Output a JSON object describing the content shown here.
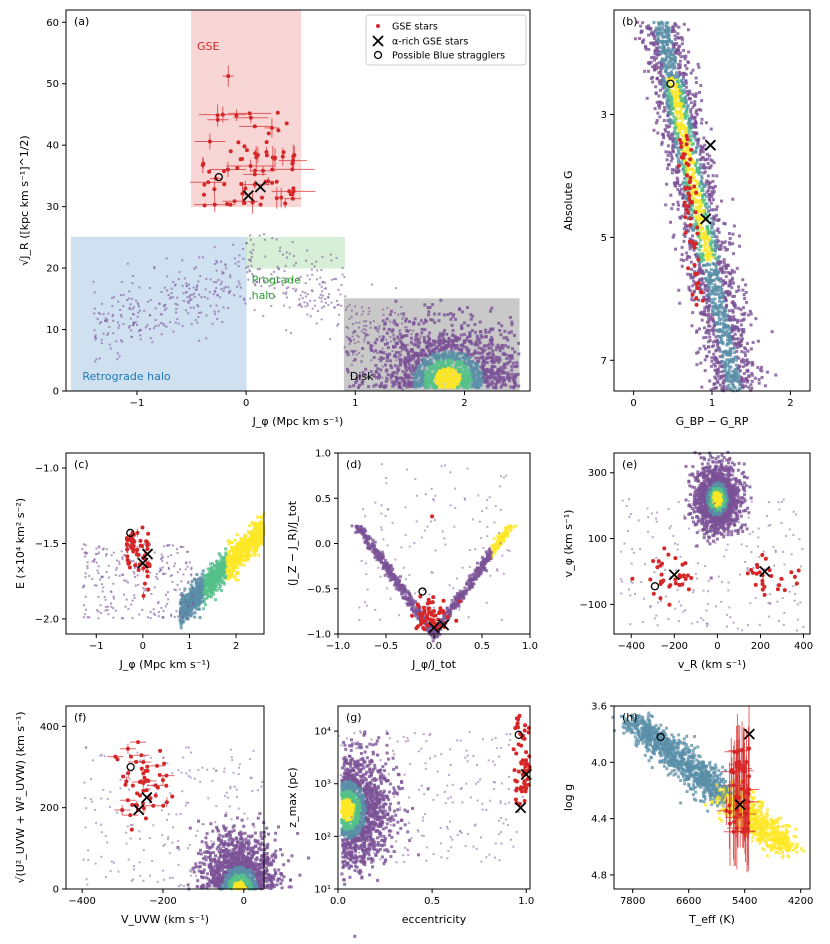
{
  "colors": {
    "gse_star": "#d62728",
    "gse_region": "#f4b6b6",
    "retro_region": "#a9c9e6",
    "pro_region": "#b5e2b5",
    "disk_region": "#9e9e9e",
    "retro_text": "#1f77b4",
    "pro_text": "#2ca02c",
    "gse_text": "#d62728",
    "halo_dot": "#7a5196",
    "dens_low": "#5a8fa8",
    "dens_mid": "#55c08a",
    "dens_high": "#fde725"
  },
  "legend": {
    "gse": "GSE stars",
    "alpha": "α-rich GSE stars",
    "bs": "Possible Blue stragglers"
  },
  "regions": {
    "gse": "GSE",
    "retro": "Retrograde halo",
    "pro1": "Prograde",
    "pro2": "halo",
    "disk": "Disk"
  },
  "chart_data": [
    {
      "panel": "(a)",
      "type": "scatter",
      "xlabel": "J_φ (Mpc km s⁻¹)",
      "ylabel": "√J_R ([kpc km s⁻¹]^1/2)",
      "xlim": [
        -1.65,
        2.6
      ],
      "ylim": [
        0,
        62
      ],
      "xticks": [
        -1,
        0,
        1,
        2
      ],
      "yticks": [
        0,
        10,
        20,
        30,
        40,
        50,
        60
      ],
      "regions": [
        {
          "name": "GSE",
          "x": [
            -0.5,
            0.5
          ],
          "y": [
            30,
            62
          ]
        },
        {
          "name": "Retrograde halo",
          "x": [
            -1.6,
            0
          ],
          "y": [
            0,
            25
          ]
        },
        {
          "name": "Prograde halo",
          "x": [
            0,
            0.9
          ],
          "y": [
            20,
            25
          ]
        },
        {
          "name": "Disk",
          "x": [
            0.9,
            2.5
          ],
          "y": [
            0,
            15
          ]
        }
      ],
      "alpha_rich": [
        [
          0.02,
          31.8
        ],
        [
          0.13,
          33.2
        ]
      ],
      "blue_stragglers": [
        [
          -0.25,
          34.8
        ]
      ],
      "density": [
        {
          "cx": 1.85,
          "cy": 4,
          "rx": 0.7,
          "ry": 8
        }
      ],
      "gse_count": 80
    },
    {
      "panel": "(b)",
      "type": "scatter",
      "xlabel": "G_BP − G_RP",
      "ylabel": "Absolute G",
      "xlim": [
        -0.25,
        2.25
      ],
      "ylim": [
        7.5,
        1.3
      ],
      "xticks": [
        0,
        1,
        2
      ],
      "yticks": [
        3,
        5,
        7
      ],
      "alpha_rich": [
        [
          0.98,
          3.5
        ],
        [
          0.92,
          4.7
        ]
      ],
      "blue_stragglers": [
        [
          0.47,
          2.5
        ]
      ],
      "gse_count": 60
    },
    {
      "panel": "(c)",
      "type": "scatter",
      "xlabel": "J_φ (Mpc km s⁻¹)",
      "ylabel": "E (×10⁴ km² s⁻²)",
      "xlim": [
        -1.65,
        2.6
      ],
      "ylim": [
        -2.1,
        -0.9
      ],
      "xticks": [
        -1,
        0,
        1,
        2
      ],
      "yticks": [
        -2.0,
        -1.5,
        -1.0
      ],
      "alpha_rich": [
        [
          0.0,
          -1.63
        ],
        [
          0.1,
          -1.57
        ]
      ],
      "blue_stragglers": [
        [
          -0.27,
          -1.43
        ]
      ],
      "gse_count": 60
    },
    {
      "panel": "(d)",
      "type": "scatter",
      "xlabel": "J_φ/J_tot",
      "ylabel": "(J_Z − J_R)/J_tot",
      "xlim": [
        -1.0,
        1.0
      ],
      "ylim": [
        -1.0,
        1.0
      ],
      "xticks": [
        -1.0,
        -0.5,
        0.0,
        0.5,
        1.0
      ],
      "yticks": [
        -1.0,
        -0.5,
        0.0,
        0.5,
        1.0
      ],
      "alpha_rich": [
        [
          0.0,
          -0.93
        ],
        [
          0.1,
          -0.9
        ]
      ],
      "blue_stragglers": [
        [
          -0.12,
          -0.53
        ]
      ],
      "gse_count": 60
    },
    {
      "panel": "(e)",
      "type": "scatter",
      "xlabel": "v_R (km s⁻¹)",
      "ylabel": "v_φ (km s⁻¹)",
      "xlim": [
        -480,
        430
      ],
      "ylim": [
        -190,
        360
      ],
      "xticks": [
        -400,
        -200,
        0,
        200,
        400
      ],
      "yticks": [
        -100,
        100,
        300
      ],
      "alpha_rich": [
        [
          -200,
          -10
        ],
        [
          220,
          0
        ]
      ],
      "blue_stragglers": [
        [
          -290,
          -45
        ]
      ],
      "gse_count": 60
    },
    {
      "panel": "(f)",
      "type": "scatter",
      "xlabel": "V_UVW (km s⁻¹)",
      "ylabel": "√(U²_UVW + W²_UVW) (km s⁻¹)",
      "xlim": [
        -440,
        50
      ],
      "ylim": [
        0,
        450
      ],
      "xticks": [
        -400,
        -200,
        0
      ],
      "yticks": [
        0,
        200,
        400
      ],
      "alpha_rich": [
        [
          -260,
          195
        ],
        [
          -240,
          225
        ]
      ],
      "blue_stragglers": [
        [
          -280,
          300
        ]
      ],
      "gse_count": 55
    },
    {
      "panel": "(g)",
      "type": "scatter",
      "xlabel": "eccentricity",
      "ylabel": "z_max (pc)",
      "xlim": [
        0,
        1.02
      ],
      "yscale": "log",
      "ylim": [
        10,
        30000
      ],
      "xticks": [
        0.0,
        0.5,
        1.0
      ],
      "yticks": [
        10,
        100,
        1000,
        10000
      ],
      "alpha_rich": [
        [
          0.97,
          350
        ],
        [
          1.0,
          1500
        ]
      ],
      "blue_stragglers": [
        [
          0.96,
          8500
        ]
      ],
      "gse_count": 60
    },
    {
      "panel": "(h)",
      "type": "scatter",
      "xlabel": "T_eff (K)",
      "ylabel": "log g",
      "xlim": [
        8200,
        4000
      ],
      "ylim": [
        4.9,
        3.6
      ],
      "xticks": [
        7800,
        6600,
        5400,
        4200
      ],
      "yticks": [
        3.6,
        4.0,
        4.4,
        4.8
      ],
      "alpha_rich": [
        [
          5500,
          4.3
        ],
        [
          5300,
          3.8
        ]
      ],
      "blue_stragglers": [
        [
          7200,
          3.82
        ]
      ],
      "gse_count": 55
    }
  ],
  "tick_labels": {
    "a_x": [
      "−1",
      "0",
      "1",
      "2"
    ],
    "a_y": [
      "0",
      "10",
      "20",
      "30",
      "40",
      "50",
      "60"
    ],
    "b_x": [
      "0",
      "1",
      "2"
    ],
    "b_y": [
      "3",
      "5",
      "7"
    ],
    "c_x": [
      "−1",
      "0",
      "1",
      "2"
    ],
    "c_y": [
      "−2.0",
      "−1.5",
      "−1.0"
    ],
    "d_x": [
      "−1.0",
      "−0.5",
      "0.0",
      "0.5",
      "1.0"
    ],
    "d_y": [
      "−1.0",
      "−0.5",
      "0.0",
      "0.5",
      "1.0"
    ],
    "e_x": [
      "−400",
      "−200",
      "0",
      "200",
      "400"
    ],
    "e_y": [
      "−100",
      "100",
      "300"
    ],
    "f_x": [
      "−400",
      "−200",
      "0"
    ],
    "f_y": [
      "0",
      "200",
      "400"
    ],
    "g_x": [
      "0.0",
      "0.5",
      "1.0"
    ],
    "g_y": [
      "10¹",
      "10²",
      "10³",
      "10⁴"
    ],
    "h_x": [
      "7800",
      "6600",
      "5400",
      "4200"
    ],
    "h_y": [
      "3.6",
      "4.0",
      "4.4",
      "4.8"
    ]
  }
}
